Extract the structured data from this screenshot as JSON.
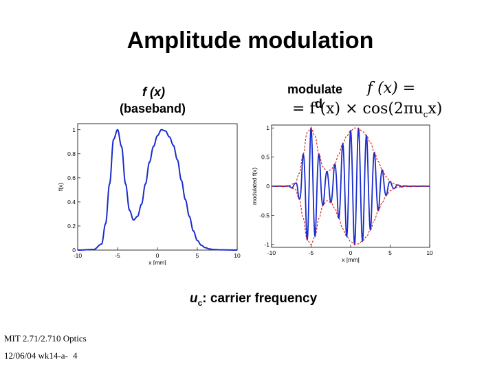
{
  "slide": {
    "title": "Amplitude modulation",
    "label_left_math": "f (x)",
    "label_left_sub": "(baseband)",
    "label_right_line1": "modulate",
    "label_right_line2": "d",
    "formula_line1": "f (x) =",
    "formula_line2": "= f (x) × cos(2πu",
    "formula_line2_sub": "c",
    "formula_line2_end": "x)",
    "carrier_note_sym": "u",
    "carrier_note_sub": "c",
    "carrier_note_text": ": carrier frequency",
    "footer_course": "MIT 2.71/2.710 Optics",
    "footer_date": "12/06/04 wk14-a-",
    "footer_page": "4"
  },
  "chart_data": [
    {
      "type": "line",
      "title": "",
      "xlabel": "x [mm]",
      "ylabel": "f(x)",
      "xlim": [
        -10,
        10
      ],
      "ylim": [
        0,
        1.05
      ],
      "xticks": [
        -10,
        -5,
        0,
        5,
        10
      ],
      "yticks": [
        0,
        0.2,
        0.4,
        0.6,
        0.8,
        1
      ],
      "series": [
        {
          "color": "#1a2ccc",
          "x": [
            -10,
            -8,
            -7,
            -6.5,
            -6,
            -5.5,
            -5,
            -4.5,
            -4,
            -3.5,
            -3,
            -2.5,
            -2,
            -1.5,
            -1,
            -0.5,
            0,
            0.5,
            1,
            1.5,
            2,
            2.5,
            3,
            3.5,
            4,
            4.5,
            5,
            5.5,
            6,
            6.5,
            7,
            8,
            10
          ],
          "y": [
            0,
            0.005,
            0.05,
            0.22,
            0.55,
            0.92,
            1.0,
            0.86,
            0.55,
            0.33,
            0.25,
            0.28,
            0.38,
            0.55,
            0.73,
            0.86,
            0.95,
            1.0,
            0.99,
            0.94,
            0.87,
            0.75,
            0.58,
            0.42,
            0.28,
            0.16,
            0.08,
            0.04,
            0.02,
            0.01,
            0.005,
            0.002,
            0
          ]
        }
      ]
    },
    {
      "type": "line",
      "title": "",
      "xlabel": "x [mm]",
      "ylabel": "modulated f(x)",
      "xlim": [
        -10,
        10
      ],
      "ylim": [
        -1.05,
        1.05
      ],
      "xticks": [
        -10,
        -5,
        0,
        5,
        10
      ],
      "yticks": [
        -1,
        -0.5,
        0,
        0.5,
        1
      ],
      "carrier_cycles_per_mm": 1.0,
      "series": [
        {
          "color": "#1a2ccc",
          "style": "solid",
          "modulated": true
        },
        {
          "color": "#d01818",
          "style": "dashed",
          "envelope": true
        }
      ]
    }
  ]
}
